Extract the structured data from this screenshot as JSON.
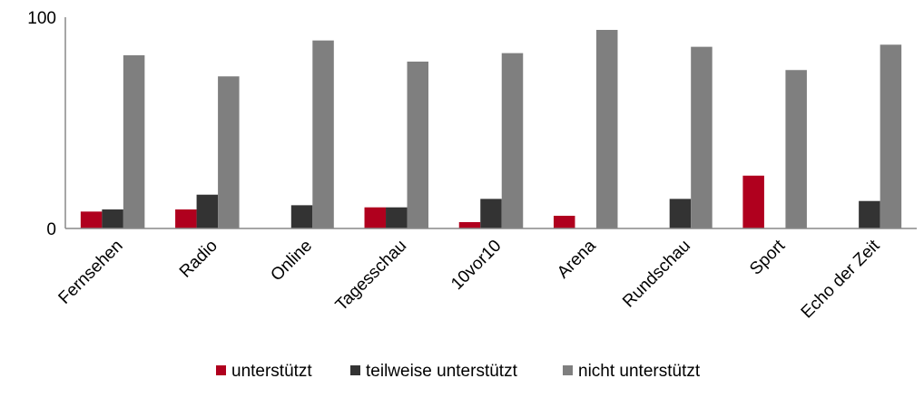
{
  "chart_data": {
    "type": "bar",
    "title": "",
    "xlabel": "",
    "ylabel": "",
    "ylim": [
      0,
      100
    ],
    "yticks": [
      "0",
      "100"
    ],
    "grid": false,
    "legend_position": "bottom",
    "categories": [
      "Fernsehen",
      "Radio",
      "Online",
      "Tagesschau",
      "10vor10",
      "Arena",
      "Rundschau",
      "Sport",
      "Echo der Zeit"
    ],
    "series": [
      {
        "name": "unterstützt",
        "color": "#B0001E",
        "values": [
          8,
          9,
          0,
          10,
          3,
          6,
          0,
          25,
          0
        ]
      },
      {
        "name": "teilweise unterstützt",
        "color": "#333333",
        "values": [
          9,
          16,
          11,
          10,
          14,
          0,
          14,
          0,
          13
        ]
      },
      {
        "name": "nicht unterstützt",
        "color": "#7F7F7F",
        "values": [
          82,
          72,
          89,
          79,
          83,
          94,
          86,
          75,
          87
        ]
      }
    ]
  }
}
